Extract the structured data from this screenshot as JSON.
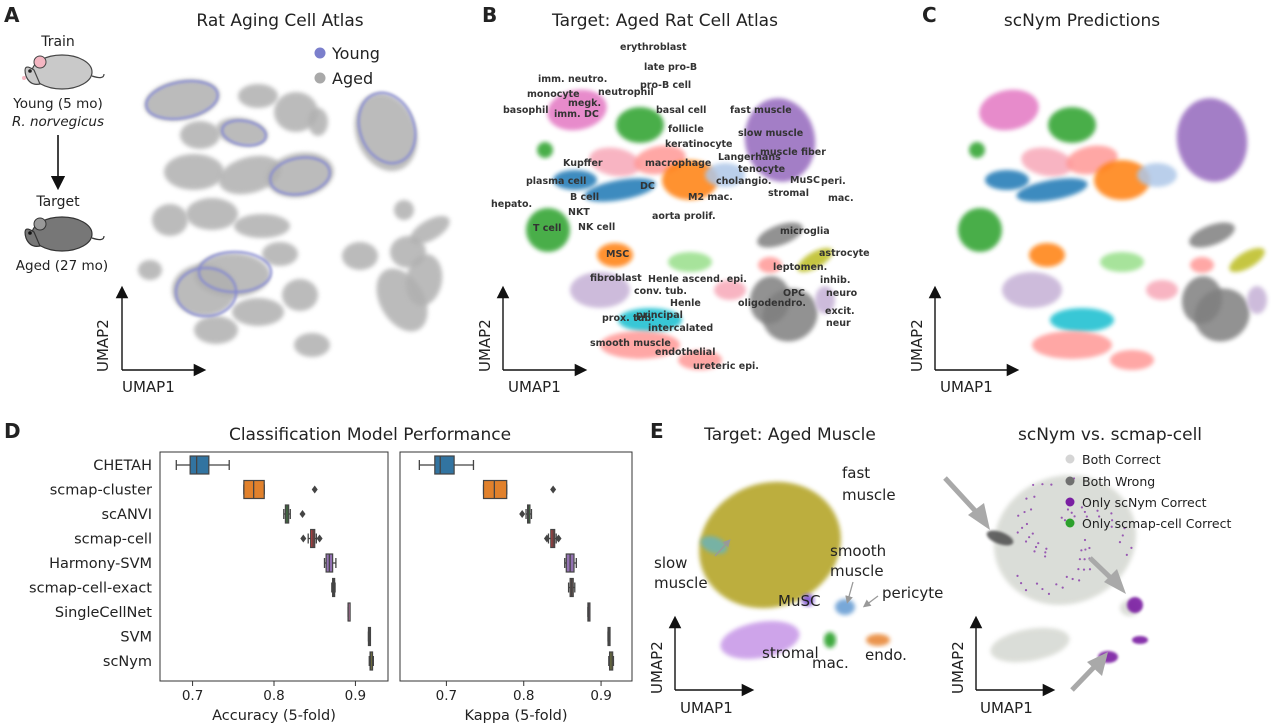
{
  "panels": {
    "A": {
      "letter": "A",
      "title": "Rat Aging Cell Atlas",
      "train_label": "Train",
      "train_desc": "Young (5 mo)",
      "species": "R. norvegicus",
      "target_label": "Target",
      "target_desc": "Aged (27 mo)",
      "legend": [
        {
          "label": "Young",
          "color": "#7b7fcc"
        },
        {
          "label": "Aged",
          "color": "#a9a9a9"
        }
      ],
      "xlabel": "UMAP1",
      "ylabel": "UMAP2"
    },
    "B": {
      "letter": "B",
      "title": "Target: Aged Rat Cell Atlas",
      "xlabel": "UMAP1",
      "ylabel": "UMAP2",
      "cell_labels": [
        "erythroblast",
        "late pro-B",
        "pro-B cell",
        "imm. neutro.",
        "monocyte",
        "neutrophil",
        "megk.",
        "basophil",
        "imm. DC",
        "basal cell",
        "fast muscle",
        "follicle",
        "slow muscle",
        "keratinocyte",
        "muscle fiber",
        "Kupffer",
        "macrophage",
        "Langerhans",
        "tenocyte",
        "plasma cell",
        "DC",
        "cholangio.",
        "MuSC",
        "peri.",
        "B cell",
        "M2 mac.",
        "stromal",
        "mac.",
        "hepato.",
        "NKT",
        "aorta prolif.",
        "T cell",
        "NK cell",
        "microglia",
        "astrocyte",
        "MSC",
        "leptomen.",
        "fibroblast",
        "Henle ascend. epi.",
        "inhib.",
        "conv. tub.",
        "OPC",
        "neuro",
        "Henle",
        "oligodendro.",
        "principal",
        "excit.",
        "prox. tub.",
        "intercalated",
        "neur",
        "smooth muscle",
        "endothelial",
        "ureteric epi."
      ]
    },
    "C": {
      "letter": "C",
      "title": "scNym Predictions",
      "xlabel": "UMAP1",
      "ylabel": "UMAP2"
    },
    "D": {
      "letter": "D",
      "title": "Classification Model Performance"
    },
    "E": {
      "letter": "E",
      "title_left": "Target: Aged Muscle",
      "title_right": "scNym vs. scmap-cell",
      "xlabel": "UMAP1",
      "ylabel": "UMAP2",
      "muscle_labels": [
        "fast muscle",
        "slow muscle",
        "smooth muscle",
        "pericyte",
        "MuSC",
        "stromal",
        "mac.",
        "endo."
      ],
      "legend": [
        {
          "label": "Both Correct",
          "color": "#d5d5d5"
        },
        {
          "label": "Both Wrong",
          "color": "#707070"
        },
        {
          "label": "Only scNym Correct",
          "color": "#7a1fa2"
        },
        {
          "label": "Only scmap-cell Correct",
          "color": "#2ca02c"
        }
      ]
    }
  },
  "chart_data": [
    {
      "type": "box",
      "panel": "D-left",
      "xlabel": "Accuracy (5-fold)",
      "xlim": [
        0.66,
        0.94
      ],
      "xticks": [
        0.7,
        0.8,
        0.9
      ],
      "categories": [
        "CHETAH",
        "scmap-cluster",
        "scANVI",
        "scmap-cell",
        "Harmony-SVM",
        "scmap-cell-exact",
        "SingleCellNet",
        "SVM",
        "scNym"
      ],
      "colors": [
        "#3274a1",
        "#e1812c",
        "#3a923a",
        "#c03d3e",
        "#9372b2",
        "#845b53",
        "#d684bd",
        "#7f7f7f",
        "#a9aa35"
      ],
      "boxes": [
        {
          "min": 0.68,
          "q1": 0.697,
          "median": 0.705,
          "q3": 0.72,
          "max": 0.745,
          "outliers": []
        },
        {
          "min": 0.763,
          "q1": 0.763,
          "median": 0.775,
          "q3": 0.788,
          "max": 0.788,
          "outliers": [
            0.85
          ]
        },
        {
          "min": 0.812,
          "q1": 0.814,
          "median": 0.816,
          "q3": 0.818,
          "max": 0.82,
          "outliers": [
            0.835
          ]
        },
        {
          "min": 0.842,
          "q1": 0.845,
          "median": 0.848,
          "q3": 0.85,
          "max": 0.852,
          "outliers": [
            0.836,
            0.856
          ]
        },
        {
          "min": 0.862,
          "q1": 0.864,
          "median": 0.868,
          "q3": 0.872,
          "max": 0.876,
          "outliers": []
        },
        {
          "min": 0.871,
          "q1": 0.872,
          "median": 0.873,
          "q3": 0.874,
          "max": 0.875,
          "outliers": []
        },
        {
          "min": 0.891,
          "q1": 0.891,
          "median": 0.891,
          "q3": 0.892,
          "max": 0.892,
          "outliers": []
        },
        {
          "min": 0.916,
          "q1": 0.916,
          "median": 0.917,
          "q3": 0.917,
          "max": 0.917,
          "outliers": []
        },
        {
          "min": 0.917,
          "q1": 0.918,
          "median": 0.919,
          "q3": 0.921,
          "max": 0.922,
          "outliers": []
        }
      ]
    },
    {
      "type": "box",
      "panel": "D-right",
      "xlabel": "Kappa (5-fold)",
      "xlim": [
        0.64,
        0.94
      ],
      "xticks": [
        0.7,
        0.8,
        0.9
      ],
      "categories": [
        "CHETAH",
        "scmap-cluster",
        "scANVI",
        "scmap-cell",
        "Harmony-SVM",
        "scmap-cell-exact",
        "SingleCellNet",
        "SVM",
        "scNym"
      ],
      "colors": [
        "#3274a1",
        "#e1812c",
        "#3a923a",
        "#c03d3e",
        "#9372b2",
        "#845b53",
        "#d684bd",
        "#7f7f7f",
        "#a9aa35"
      ],
      "boxes": [
        {
          "min": 0.665,
          "q1": 0.685,
          "median": 0.692,
          "q3": 0.71,
          "max": 0.735,
          "outliers": []
        },
        {
          "min": 0.748,
          "q1": 0.748,
          "median": 0.762,
          "q3": 0.778,
          "max": 0.778,
          "outliers": [
            0.838
          ]
        },
        {
          "min": 0.803,
          "q1": 0.805,
          "median": 0.806,
          "q3": 0.808,
          "max": 0.81,
          "outliers": [
            0.798
          ]
        },
        {
          "min": 0.832,
          "q1": 0.835,
          "median": 0.838,
          "q3": 0.84,
          "max": 0.842,
          "outliers": [
            0.83,
            0.845
          ]
        },
        {
          "min": 0.853,
          "q1": 0.855,
          "median": 0.86,
          "q3": 0.865,
          "max": 0.868,
          "outliers": []
        },
        {
          "min": 0.858,
          "q1": 0.86,
          "median": 0.862,
          "q3": 0.864,
          "max": 0.866,
          "outliers": []
        },
        {
          "min": 0.883,
          "q1": 0.883,
          "median": 0.884,
          "q3": 0.884,
          "max": 0.884,
          "outliers": []
        },
        {
          "min": 0.909,
          "q1": 0.909,
          "median": 0.91,
          "q3": 0.91,
          "max": 0.91,
          "outliers": []
        },
        {
          "min": 0.91,
          "q1": 0.911,
          "median": 0.913,
          "q3": 0.915,
          "max": 0.916,
          "outliers": []
        }
      ]
    }
  ]
}
